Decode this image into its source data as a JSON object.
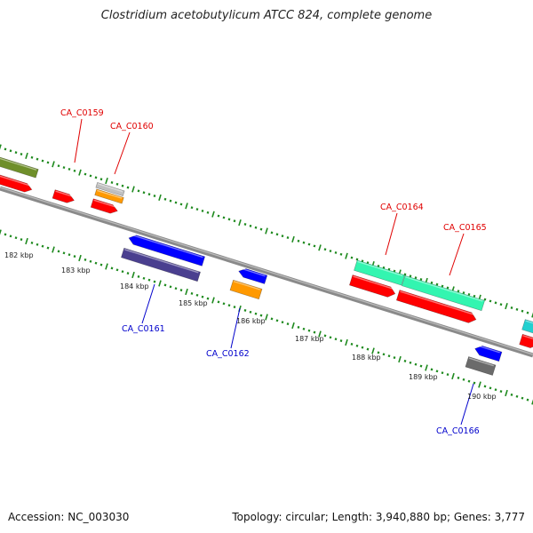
{
  "title": "Clostridium acetobutylicum ATCC 824, complete genome",
  "accession_label": "Accession: NC_003030",
  "topology_label": "Topology: circular; Length: 3,940,880 bp; Genes: 3,777",
  "colors": {
    "backbone": "#8a8a8a",
    "tick": "#1f8a1f",
    "forward_label": "#e00000",
    "reverse_label": "#0000cc",
    "red_gene": "#ff0000",
    "blue_gene": "#0000ff",
    "navy_gene": "#4a3f8f",
    "teal_gene": "#33f5b0",
    "olive_gene": "#6f8f2a",
    "orange_gene": "#ff9900",
    "gray_gene": "#6b6b6b",
    "light_gray_gene": "#c0c0c0",
    "cyan_gene": "#22d0d0"
  },
  "scale": {
    "unit": "kbp",
    "tick_labels": [
      "182 kbp",
      "183 kbp",
      "184 kbp",
      "185 kbp",
      "186 kbp",
      "187 kbp",
      "188 kbp",
      "189 kbp",
      "190 kbp"
    ]
  },
  "gene_labels": [
    {
      "name": "CA_C0159",
      "strand": "forward"
    },
    {
      "name": "CA_C0160",
      "strand": "forward"
    },
    {
      "name": "CA_C0164",
      "strand": "forward"
    },
    {
      "name": "CA_C0165",
      "strand": "forward"
    },
    {
      "name": "CA_C0161",
      "strand": "reverse"
    },
    {
      "name": "CA_C0162",
      "strand": "reverse"
    },
    {
      "name": "CA_C0166",
      "strand": "reverse"
    }
  ]
}
